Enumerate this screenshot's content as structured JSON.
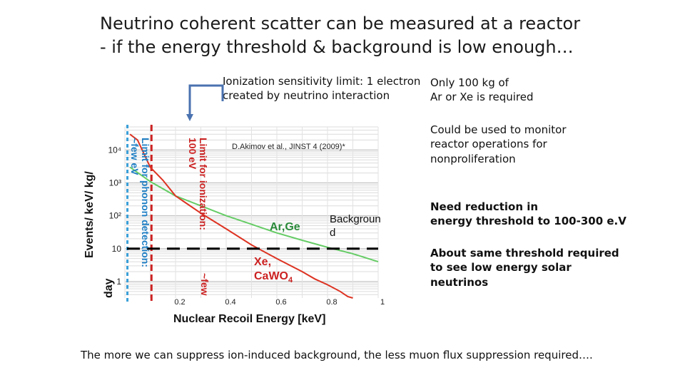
{
  "slide": {
    "title_line1": "Neutrino coherent scatter can be measured at a reactor",
    "title_line2": "- if the energy threshold & background is low enough…",
    "ionization_note_line1": "Ionization sensitivity limit:  1 electron",
    "ionization_note_line2": "created by neutrino interaction",
    "mass_note_line1": "Only 100 kg of",
    "mass_note_line2": "Ar or Xe is required",
    "monitor_note_line1": "Could be used to monitor",
    "monitor_note_line2": "reactor operations for",
    "monitor_note_line3": "nonproliferation",
    "reduction_note_line1": "Need reduction in",
    "reduction_note_line2": "energy threshold to 100-300 e.V",
    "solar_note_line1": "About same threshold required",
    "solar_note_line2": "to see  low energy solar",
    "solar_note_line3": "neutrinos",
    "footer": "The more we can suppress ion-induced background, the less muon flux suppression required…."
  },
  "chart_data": {
    "type": "line",
    "xlabel": "Nuclear Recoil Energy [keV]",
    "ylabel_line1": "Events/ keV/ kg/",
    "ylabel_line2": "day",
    "x_ticks": [
      "0.2",
      "0.4",
      "0.6",
      "0.8",
      "1"
    ],
    "y_ticks": [
      "10⁴",
      "10³",
      "10²",
      "10",
      "1"
    ],
    "xlim": [
      0.0,
      1.0
    ],
    "ylim_log10": [
      -0.5,
      4.7
    ],
    "y_scale": "log",
    "citation": "D.Akimov et al., JINST 4 (2009)*",
    "series": [
      {
        "name": "Ar,Ge",
        "color": "#66cc66",
        "x": [
          0.02,
          0.1,
          0.2,
          0.3,
          0.4,
          0.5,
          0.6,
          0.7,
          0.8,
          0.9,
          1.0
        ],
        "y": [
          3000,
          1100,
          400,
          200,
          100,
          55,
          30,
          18,
          11,
          7,
          4
        ]
      },
      {
        "name": "Xe, CaWO4",
        "color": "#dd3322",
        "x": [
          0.02,
          0.05,
          0.1,
          0.15,
          0.2,
          0.3,
          0.4,
          0.5,
          0.6,
          0.7,
          0.75,
          0.8,
          0.85,
          0.88,
          0.9
        ],
        "y": [
          30000,
          20000,
          3000,
          1200,
          400,
          120,
          40,
          13,
          5,
          2,
          1.2,
          0.8,
          0.5,
          0.35,
          0.3
        ]
      }
    ],
    "background_label_line1": "Backgroun",
    "background_label_line2": "d",
    "background_level": 10,
    "threshold_lines": [
      {
        "label_line1": "Limit for phonon detection:",
        "label_line2": "~few eV",
        "x": 0.01,
        "color": "#3a9fd8"
      },
      {
        "label_line1": "Limit for ionization:",
        "label_line2": "100 eV",
        "x": 0.105,
        "color": "#cc2222"
      },
      {
        "label_line1": "~few",
        "label_line2": "",
        "x": 0.105,
        "color": "#cc2222"
      }
    ],
    "grid": true
  }
}
